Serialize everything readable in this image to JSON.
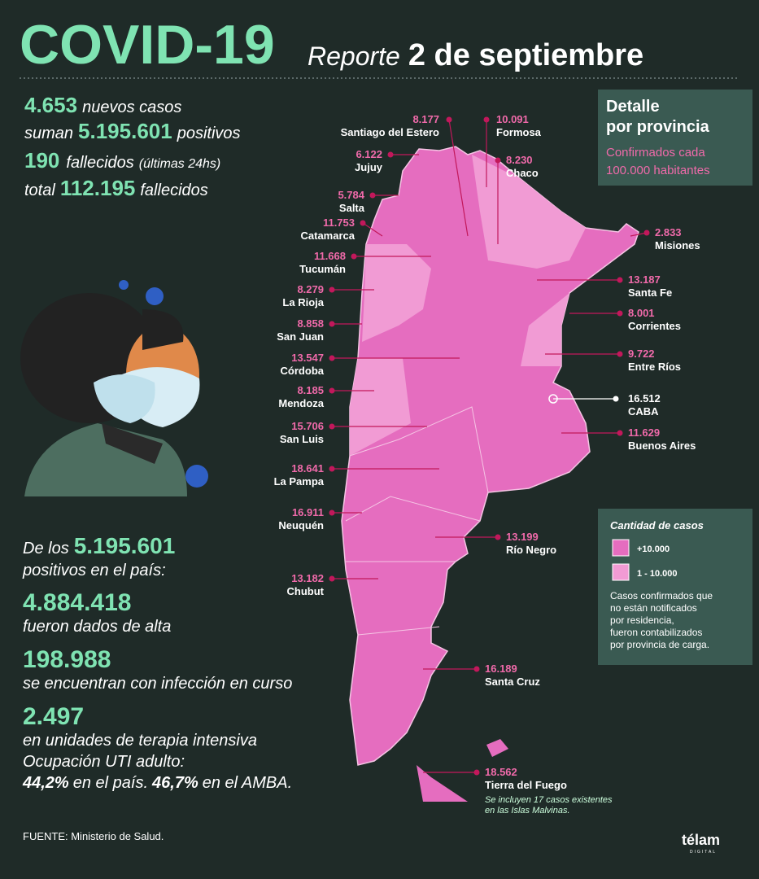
{
  "header": {
    "title": "COVID-19",
    "subtitle": "Reporte",
    "date": "2 de septiembre"
  },
  "summary": {
    "new_cases": {
      "value": "4.653",
      "text": "nuevos casos"
    },
    "total_cases": {
      "prefix": "suman",
      "value": "5.195.601",
      "text": "positivos"
    },
    "new_deaths": {
      "value": "190",
      "text": "fallecidos",
      "note": "(últimas 24hs)"
    },
    "total_deaths": {
      "prefix": "total",
      "value": "112.195",
      "text": "fallecidos"
    }
  },
  "detail_box": {
    "title_line1": "Detalle",
    "title_line2": "por provincia",
    "subtitle_line1": "Confirmados cada",
    "subtitle_line2": "100.000 habitantes"
  },
  "provinces": [
    {
      "name": "Santiago del Estero",
      "value": "8.177"
    },
    {
      "name": "Formosa",
      "value": "10.091"
    },
    {
      "name": "Jujuy",
      "value": "6.122"
    },
    {
      "name": "Chaco",
      "value": "8.230"
    },
    {
      "name": "Salta",
      "value": "5.784"
    },
    {
      "name": "Catamarca",
      "value": "11.753"
    },
    {
      "name": "Misiones",
      "value": "2.833"
    },
    {
      "name": "Tucumán",
      "value": "11.668"
    },
    {
      "name": "Santa Fe",
      "value": "13.187"
    },
    {
      "name": "La Rioja",
      "value": "8.279"
    },
    {
      "name": "Corrientes",
      "value": "8.001"
    },
    {
      "name": "San Juan",
      "value": "8.858"
    },
    {
      "name": "Entre Ríos",
      "value": "9.722"
    },
    {
      "name": "Córdoba",
      "value": "13.547"
    },
    {
      "name": "Mendoza",
      "value": "8.185"
    },
    {
      "name": "CABA",
      "value": "16.512"
    },
    {
      "name": "San Luis",
      "value": "15.706"
    },
    {
      "name": "Buenos Aires",
      "value": "11.629"
    },
    {
      "name": "La Pampa",
      "value": "18.641"
    },
    {
      "name": "Neuquén",
      "value": "16.911"
    },
    {
      "name": "Río Negro",
      "value": "13.199"
    },
    {
      "name": "Chubut",
      "value": "13.182"
    },
    {
      "name": "Santa Cruz",
      "value": "16.189"
    },
    {
      "name": "Tierra del Fuego",
      "value": "18.562"
    }
  ],
  "falklands_note": {
    "line1": "Se incluyen 17 casos existentes",
    "line2": "en las Islas Malvinas."
  },
  "legend": {
    "title": "Cantidad de casos",
    "items": [
      "+10.000",
      "1 - 10.000"
    ],
    "note": [
      "Casos confirmados que",
      "no están notificados",
      "por residencia,",
      "fueron contabilizados",
      "por provincia de carga."
    ]
  },
  "breakdown": {
    "intro": {
      "prefix": "De los",
      "value": "5.195.601",
      "line2": "positivos en el país:"
    },
    "items": [
      {
        "value": "4.884.418",
        "text": "fueron dados de alta"
      },
      {
        "value": "198.988",
        "text": "se encuentran con infección en curso"
      },
      {
        "value": "2.497",
        "text": "en unidades de terapia intensiva"
      }
    ],
    "uti": {
      "label": "Ocupación UTI adulto:",
      "country_value": "44,2%",
      "country_text": "en el país.",
      "amba_value": "46,7%",
      "amba_text": "en el AMBA."
    }
  },
  "source": "FUENTE: Ministerio de Salud.",
  "brand": {
    "name": "télam",
    "sub": "DIGITAL"
  }
}
